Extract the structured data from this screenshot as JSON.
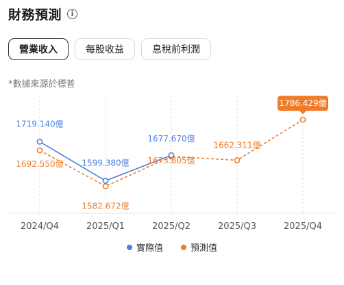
{
  "header": {
    "title": "財務預測",
    "info_icon": "info-icon"
  },
  "tabs": [
    {
      "label": "營業收入",
      "active": true
    },
    {
      "label": "每股收益",
      "active": false
    },
    {
      "label": "息稅前利潤",
      "active": false
    }
  ],
  "source_note": "*數據來源於標普",
  "colors": {
    "actual": "#4a7fe0",
    "forecast": "#f07c2a",
    "grid": "#dcdcdc"
  },
  "chart_data": {
    "type": "line",
    "categories": [
      "2024/Q4",
      "2025/Q1",
      "2025/Q2",
      "2025/Q3",
      "2025/Q4"
    ],
    "series": [
      {
        "name": "實際值",
        "values": [
          1719.14,
          1599.38,
          1677.67,
          null,
          null
        ],
        "labels": [
          "1719.140億",
          "1599.380億",
          "1677.670億",
          "",
          ""
        ],
        "style": "solid"
      },
      {
        "name": "預測值",
        "values": [
          1692.55,
          1582.672,
          1673.805,
          1662.311,
          1786.429
        ],
        "labels": [
          "1692.550億",
          "1582.672億",
          "1673.805億",
          "1662.311億",
          "1786.429億"
        ],
        "style": "dashed"
      }
    ],
    "ylim": [
      1500,
      1860
    ],
    "grid": "vertical-dashed",
    "legend": "bottom-center"
  }
}
